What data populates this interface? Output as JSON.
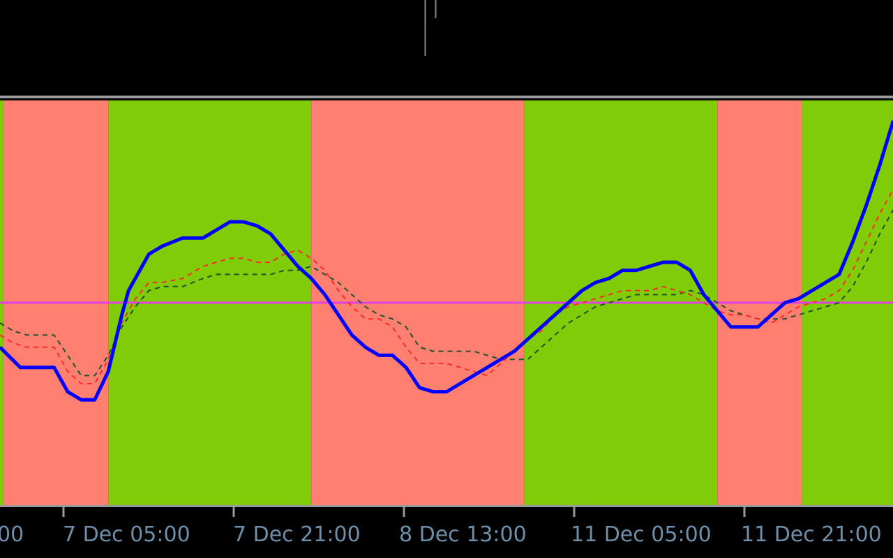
{
  "chart_data": {
    "type": "line",
    "xlabel": "",
    "ylabel": "",
    "x_ticks": [
      "7 Dec 05:00",
      "7 Dec 21:00",
      "8 Dec 13:00",
      "11 Dec 05:00",
      "11 Dec 21:00"
    ],
    "x_tick_partial_left": "00",
    "ylim": [
      -50,
      50
    ],
    "reference_level": 0,
    "grid": false,
    "legend": "none",
    "background_zones": [
      {
        "state": "bull",
        "from_bar": 0,
        "to_bar": 0.5
      },
      {
        "state": "bear",
        "from_bar": 0.5,
        "to_bar": 16
      },
      {
        "state": "bull",
        "from_bar": 16,
        "to_bar": 46
      },
      {
        "state": "bear",
        "from_bar": 46,
        "to_bar": 77.5
      },
      {
        "state": "bull",
        "from_bar": 77.5,
        "to_bar": 106
      },
      {
        "state": "bear",
        "from_bar": 106,
        "to_bar": 118.5
      },
      {
        "state": "bull",
        "from_bar": 118.5,
        "to_bar": 132
      }
    ],
    "series": [
      {
        "style": "thick-solid",
        "color": "#0000ff",
        "x": [
          0,
          3,
          8,
          10,
          12,
          14,
          16,
          18,
          19,
          20,
          22,
          24,
          27,
          30,
          32,
          34,
          36,
          38,
          40,
          42,
          44,
          46,
          48,
          50,
          52,
          54,
          56,
          58,
          60,
          62,
          64,
          66,
          68,
          70,
          72,
          74,
          76,
          78,
          80,
          82,
          84,
          86,
          88,
          90,
          92,
          94,
          96,
          98,
          100,
          102,
          104,
          106,
          108,
          110,
          112,
          114,
          116,
          118,
          120,
          122,
          124,
          126,
          128,
          130,
          132
        ],
        "y": [
          -11,
          -16,
          -16,
          -22,
          -24,
          -24,
          -17,
          -3,
          3,
          6,
          12,
          14,
          16,
          16,
          18,
          20,
          20,
          19,
          17,
          13,
          9,
          6,
          2,
          -3,
          -8,
          -11,
          -13,
          -13,
          -16,
          -21,
          -22,
          -22,
          -20,
          -18,
          -16,
          -14,
          -12,
          -9,
          -6,
          -3,
          0,
          3,
          5,
          6,
          8,
          8,
          9,
          10,
          10,
          8,
          2,
          -2,
          -6,
          -6,
          -6,
          -3,
          0,
          1,
          3,
          5,
          7,
          15,
          24,
          34,
          45
        ]
      },
      {
        "style": "dashed",
        "color": "#ff2a2a",
        "x": [
          0,
          2,
          4,
          8,
          10,
          12,
          14,
          16,
          18,
          20,
          22,
          24,
          27,
          30,
          32,
          34,
          36,
          38,
          40,
          42,
          44,
          46,
          48,
          50,
          52,
          54,
          56,
          58,
          60,
          62,
          64,
          66,
          68,
          70,
          72,
          74,
          76,
          78,
          80,
          82,
          84,
          86,
          88,
          90,
          92,
          94,
          96,
          98,
          100,
          102,
          104,
          106,
          108,
          110,
          112,
          114,
          116,
          118,
          120,
          122,
          124,
          126,
          128,
          130,
          132
        ],
        "y": [
          -8,
          -10,
          -11,
          -11,
          -17,
          -20,
          -20,
          -14,
          -5,
          1,
          5,
          5,
          6,
          9,
          10,
          11,
          11,
          10,
          10,
          12,
          13,
          11,
          8,
          3,
          -1,
          -4,
          -4,
          -6,
          -11,
          -15,
          -15,
          -15,
          -16,
          -17,
          -18,
          -15,
          -12,
          -9,
          -7,
          -3,
          -1,
          0,
          1,
          2,
          3,
          3,
          3,
          4,
          3,
          2,
          0,
          -2,
          -3,
          -3,
          -4,
          -5,
          -3,
          -1,
          0,
          1,
          3,
          8,
          15,
          22,
          28
        ]
      },
      {
        "style": "dashed",
        "color": "#1f4f2f",
        "x": [
          0,
          2,
          4,
          8,
          10,
          12,
          14,
          16,
          18,
          20,
          22,
          24,
          27,
          30,
          32,
          34,
          36,
          38,
          40,
          42,
          44,
          46,
          48,
          50,
          52,
          54,
          56,
          58,
          60,
          62,
          64,
          66,
          68,
          70,
          72,
          74,
          76,
          78,
          80,
          82,
          84,
          86,
          88,
          90,
          92,
          94,
          96,
          98,
          100,
          102,
          104,
          106,
          108,
          110,
          112,
          114,
          116,
          118,
          120,
          122,
          124,
          126,
          128,
          130,
          132
        ],
        "y": [
          -5,
          -7,
          -8,
          -8,
          -13,
          -18,
          -18,
          -13,
          -6,
          -1,
          3,
          4,
          4,
          6,
          7,
          7,
          7,
          7,
          7,
          8,
          8,
          9,
          7,
          5,
          2,
          -1,
          -3,
          -4,
          -6,
          -11,
          -12,
          -12,
          -12,
          -12,
          -13,
          -14,
          -14,
          -14,
          -11,
          -8,
          -5,
          -3,
          -1,
          0,
          1,
          2,
          2,
          2,
          2,
          3,
          2,
          0,
          -2,
          -3,
          -4,
          -4,
          -4,
          -3,
          -2,
          -1,
          0,
          4,
          10,
          17,
          23
        ]
      },
      {
        "style": "reference",
        "color": "#e040e0",
        "x": [
          0,
          132
        ],
        "y": [
          0,
          0
        ]
      }
    ],
    "colors": {
      "bull": "#7fcc07",
      "bear": "#ff8070",
      "axis_text": "#6f8fa8",
      "axis_line": "#9a9a9a",
      "background": "#000000"
    }
  }
}
